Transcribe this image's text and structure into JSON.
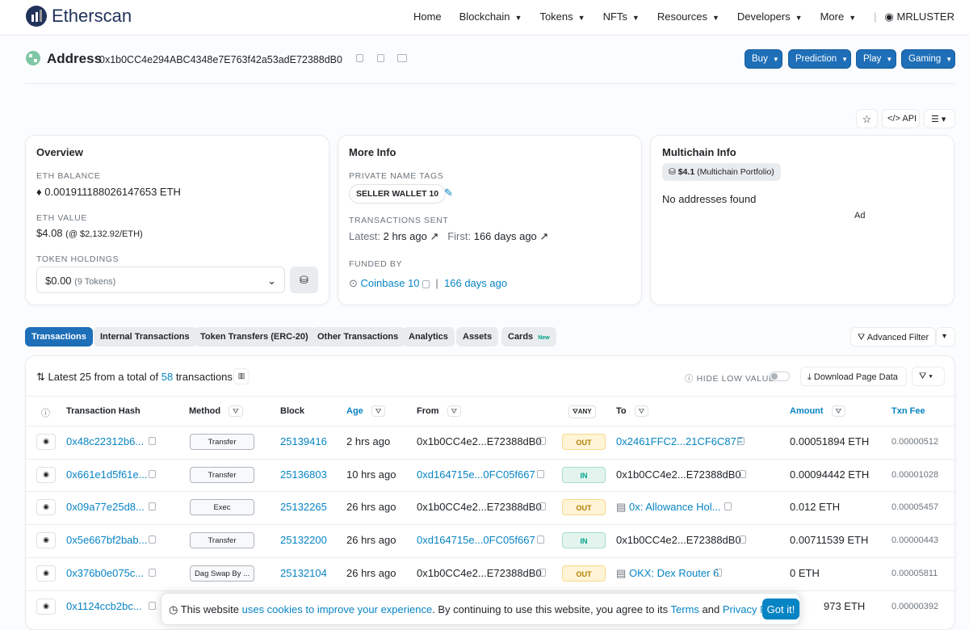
{
  "nav": {
    "logo": "Etherscan",
    "items": [
      "Home",
      "Blockchain",
      "Tokens",
      "NFTs",
      "Resources",
      "Developers",
      "More"
    ],
    "user": "MRLUSTER"
  },
  "address": {
    "label": "Address",
    "hash": "0x1b0CC4e294ABC4348e7E763f42a53adE72388dB0",
    "buttons": [
      "Buy",
      "Prediction",
      "Play",
      "Gaming"
    ]
  },
  "toolbar": {
    "api": "API"
  },
  "overview": {
    "title": "Overview",
    "eth_balance_label": "ETH BALANCE",
    "eth_balance": "0.001911188026147653 ETH",
    "eth_value_label": "ETH VALUE",
    "eth_value": "$4.08",
    "eth_price": "(@ $2,132.92/ETH)",
    "token_holdings_label": "TOKEN HOLDINGS",
    "token_value": "$0.00",
    "token_count": "(9 Tokens)"
  },
  "more_info": {
    "title": "More Info",
    "private_tags_label": "PRIVATE NAME TAGS",
    "tag": "SELLER WALLET 10",
    "tx_sent_label": "TRANSACTIONS SENT",
    "latest_label": "Latest:",
    "latest": "2 hrs ago",
    "first_label": "First:",
    "first": "166 days ago",
    "funded_label": "FUNDED BY",
    "funded_by": "Coinbase 10",
    "funded_age": "166 days ago"
  },
  "multichain": {
    "title": "Multichain Info",
    "portfolio_value": "$4.1",
    "portfolio_label": "(Multichain Portfolio)",
    "no_addresses": "No addresses found",
    "ad": "Ad"
  },
  "tabs": {
    "items": [
      "Transactions",
      "Internal Transactions",
      "Token Transfers (ERC-20)",
      "Other Transactions",
      "Analytics",
      "Assets",
      "Cards"
    ],
    "new_badge": "New",
    "advanced_filter": "Advanced Filter"
  },
  "summary": {
    "prefix": "Latest 25 from a total of",
    "total": "58",
    "suffix": "transactions",
    "hide_low": "HIDE LOW VALUE",
    "download": "Download Page Data"
  },
  "table": {
    "headers": {
      "hash": "Transaction Hash",
      "method": "Method",
      "block": "Block",
      "age": "Age",
      "from": "From",
      "direction": "ANY",
      "to": "To",
      "amount": "Amount",
      "fee": "Txn Fee"
    },
    "rows": [
      {
        "hash": "0x48c22312b6...",
        "method": "Transfer",
        "block": "25139416",
        "age": "2 hrs ago",
        "from": "0x1b0CC4e2...E72388dB0",
        "direction": "OUT",
        "to": "0x2461FFC2...21CF6C87F",
        "amount": "0.00051894 ETH",
        "fee": "0.00000512"
      },
      {
        "hash": "0x661e1d5f61e...",
        "method": "Transfer",
        "block": "25136803",
        "age": "10 hrs ago",
        "from": "0xd164715e...0FC05f667",
        "direction": "IN",
        "to": "0x1b0CC4e2...E72388dB0",
        "amount": "0.00094442 ETH",
        "fee": "0.00001028"
      },
      {
        "hash": "0x09a77e25d8...",
        "method": "Exec",
        "block": "25132265",
        "age": "26 hrs ago",
        "from": "0x1b0CC4e2...E72388dB0",
        "direction": "OUT",
        "to": "0x: Allowance Hol...",
        "amount": "0.012 ETH",
        "fee": "0.00005457"
      },
      {
        "hash": "0x5e667bf2bab...",
        "method": "Transfer",
        "block": "25132200",
        "age": "26 hrs ago",
        "from": "0xd164715e...0FC05f667",
        "direction": "IN",
        "to": "0x1b0CC4e2...E72388dB0",
        "amount": "0.00711539 ETH",
        "fee": "0.00000443"
      },
      {
        "hash": "0x376b0e075c...",
        "method": "Dag Swap By ...",
        "block": "25132104",
        "age": "26 hrs ago",
        "from": "0x1b0CC4e2...E72388dB0",
        "direction": "OUT",
        "to": "OKX: Dex Router 6",
        "amount": "0 ETH",
        "fee": "0.00005811"
      },
      {
        "hash": "0x1124ccb2bc...",
        "amount": "973 ETH",
        "fee": "0.00000392"
      }
    ]
  },
  "cookie": {
    "intro": "This website",
    "link": "uses cookies to improve your experience",
    "middle": ". By continuing to use this website, you agree to its",
    "terms": "Terms",
    "and": "and",
    "privacy": "Privacy Policy",
    "end": ".",
    "button": "Got it!"
  }
}
